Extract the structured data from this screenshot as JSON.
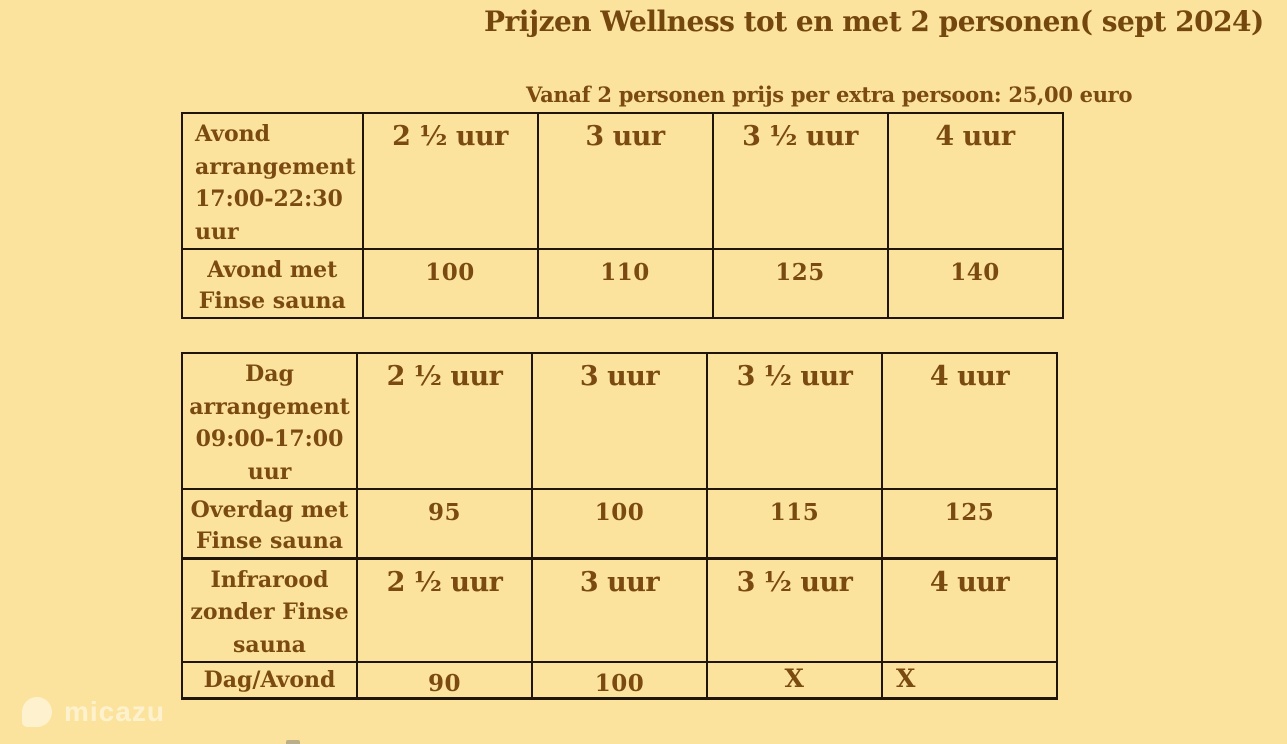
{
  "page": {
    "title": "Prijzen Wellness tot en met 2 personen( sept 2024)",
    "subtitle": "Vanaf 2 personen prijs per extra persoon: 25,00 euro"
  },
  "colors": {
    "background": "#fbe39d",
    "text_brown": "#7a4a11",
    "table_border": "#20150a",
    "watermark_cream": "#fff7df"
  },
  "tables": [
    {
      "corner_label": "Avond arrangement 17:00-22:30 uur",
      "columns": [
        "2 ½ uur",
        "3 uur",
        "3 ½ uur",
        "4 uur"
      ],
      "rows": [
        {
          "label": "Avond met Finse sauna",
          "values": [
            "100",
            "110",
            "125",
            "140"
          ]
        }
      ]
    },
    {
      "sections": [
        {
          "corner_label": "Dag arrangement 09:00-17:00 uur",
          "columns": [
            "2 ½ uur",
            "3 uur",
            "3 ½ uur",
            "4 uur"
          ],
          "rows": [
            {
              "label": "Overdag met Finse sauna",
              "values": [
                "95",
                "100",
                "115",
                "125"
              ]
            }
          ]
        },
        {
          "corner_label": "Infrarood zonder Finse sauna",
          "columns": [
            "2 ½ uur",
            "3 uur",
            "3 ½ uur",
            "4 uur"
          ],
          "rows": [
            {
              "label": "Dag/Avond",
              "values": [
                "90",
                "100",
                "X",
                "X"
              ]
            }
          ]
        }
      ]
    }
  ],
  "watermark": {
    "brand": "micazu"
  }
}
